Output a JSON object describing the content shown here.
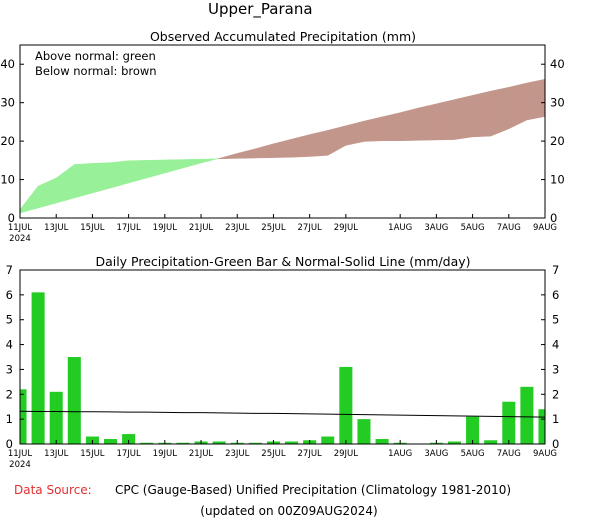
{
  "title": "Upper_Parana",
  "footer": {
    "source_label": "Data Source:",
    "source_text": "CPC (Gauge-Based) Unified Precipitation (Climatology 1981-2010)",
    "updated": "(updated on 00Z09AUG2024)"
  },
  "colors": {
    "above": "#98f198",
    "below": "#c3968b",
    "bar": "#22cc22",
    "source_label": "#e03030"
  },
  "x_ticks": [
    {
      "day": 0,
      "label": "11JUL",
      "sub": "2024"
    },
    {
      "day": 2,
      "label": "13JUL"
    },
    {
      "day": 4,
      "label": "15JUL"
    },
    {
      "day": 6,
      "label": "17JUL"
    },
    {
      "day": 8,
      "label": "19JUL"
    },
    {
      "day": 10,
      "label": "21JUL"
    },
    {
      "day": 12,
      "label": "23JUL"
    },
    {
      "day": 14,
      "label": "25JUL"
    },
    {
      "day": 16,
      "label": "27JUL"
    },
    {
      "day": 18,
      "label": "29JUL"
    },
    {
      "day": 21,
      "label": "1AUG"
    },
    {
      "day": 23,
      "label": "3AUG"
    },
    {
      "day": 25,
      "label": "5AUG"
    },
    {
      "day": 27,
      "label": "7AUG"
    },
    {
      "day": 29,
      "label": "9AUG"
    }
  ],
  "chart_data": [
    {
      "type": "area",
      "title": "Observed Accumulated Precipitation (mm)",
      "annotations": [
        "Above normal: green",
        "Below normal: brown"
      ],
      "ylim": [
        0,
        45
      ],
      "yticks": [
        0,
        10,
        20,
        30,
        40
      ],
      "x": [
        0,
        1,
        2,
        3,
        4,
        5,
        6,
        7,
        8,
        9,
        10,
        11,
        12,
        13,
        14,
        15,
        16,
        17,
        18,
        19,
        20,
        21,
        22,
        23,
        24,
        25,
        26,
        27,
        28,
        29
      ],
      "observed": [
        2.2,
        8.3,
        10.4,
        13.9,
        14.2,
        14.4,
        14.9,
        15.0,
        15.1,
        15.2,
        15.3,
        15.4,
        15.5,
        15.6,
        15.7,
        15.8,
        16.0,
        16.3,
        18.9,
        19.9,
        20.1,
        20.1,
        20.2,
        20.3,
        20.4,
        21.1,
        21.3,
        23.2,
        25.5,
        26.4
      ],
      "normal": [
        1.3,
        2.6,
        3.9,
        5.2,
        6.5,
        7.8,
        9.1,
        10.4,
        11.7,
        13.0,
        14.3,
        15.5,
        16.8,
        18.0,
        19.3,
        20.5,
        21.7,
        22.8,
        24.0,
        25.2,
        26.3,
        27.4,
        28.6,
        29.7,
        30.8,
        31.9,
        33.0,
        34.0,
        35.1,
        36.1
      ]
    },
    {
      "type": "bar",
      "title": "Daily Precipitation-Green Bar & Normal-Solid Line (mm/day)",
      "ylim": [
        0,
        7
      ],
      "yticks": [
        0,
        1,
        2,
        3,
        4,
        5,
        6,
        7
      ],
      "x": [
        0,
        1,
        2,
        3,
        4,
        5,
        6,
        7,
        8,
        9,
        10,
        11,
        12,
        13,
        14,
        15,
        16,
        17,
        18,
        19,
        20,
        21,
        22,
        23,
        24,
        25,
        26,
        27,
        28,
        29
      ],
      "values": [
        2.2,
        6.1,
        2.1,
        3.5,
        0.3,
        0.2,
        0.4,
        0.05,
        0.05,
        0.05,
        0.1,
        0.1,
        0.05,
        0.05,
        0.1,
        0.1,
        0.15,
        0.3,
        3.1,
        1.0,
        0.2,
        0.05,
        0.02,
        0.05,
        0.1,
        1.1,
        0.15,
        1.7,
        2.3,
        1.4
      ],
      "normal_line": [
        1.32,
        1.31,
        1.31,
        1.3,
        1.3,
        1.29,
        1.28,
        1.28,
        1.27,
        1.26,
        1.26,
        1.25,
        1.24,
        1.23,
        1.23,
        1.22,
        1.21,
        1.2,
        1.19,
        1.18,
        1.17,
        1.16,
        1.15,
        1.14,
        1.13,
        1.12,
        1.11,
        1.1,
        1.09,
        1.08
      ]
    }
  ]
}
